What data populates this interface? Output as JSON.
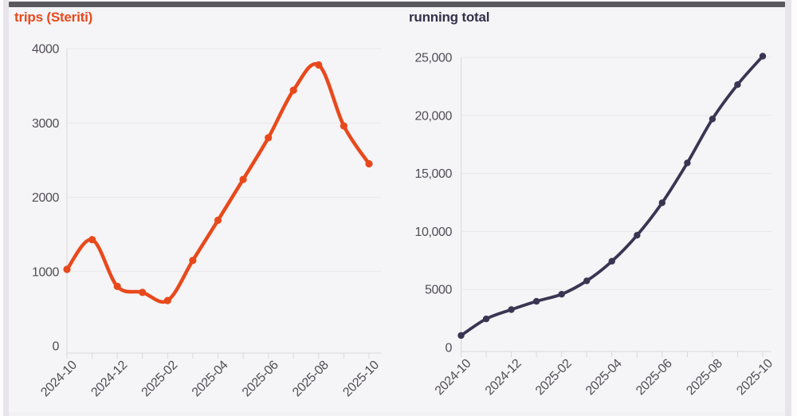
{
  "page": {
    "scrollbar_color": "#59585c",
    "background": "#f5f4f6"
  },
  "chart_data": [
    {
      "type": "line",
      "title": "trips (Steriti)",
      "title_color": "#e8491c",
      "line_color": "#e8491c",
      "smooth": true,
      "markers": true,
      "grid": true,
      "legend": "none",
      "x": [
        "2024-10",
        "2024-11",
        "2024-12",
        "2025-01",
        "2025-02",
        "2025-03",
        "2025-04",
        "2025-05",
        "2025-06",
        "2025-07",
        "2025-08",
        "2025-09",
        "2025-10"
      ],
      "values": [
        1030,
        1430,
        800,
        720,
        610,
        1150,
        1690,
        2240,
        2800,
        3440,
        3780,
        2960,
        2450
      ],
      "xlabel": "",
      "ylabel": "",
      "ylim": [
        0,
        4000
      ],
      "y_ticks": [
        0,
        1000,
        2000,
        3000,
        4000
      ],
      "y_tick_labels": [
        "0",
        "1000",
        "2000",
        "3000",
        "4000"
      ],
      "x_tick_indices": [
        0,
        2,
        4,
        6,
        8,
        10,
        12
      ],
      "x_tick_labels": [
        "2024-10",
        "2024-12",
        "2025-02",
        "2025-04",
        "2025-06",
        "2025-08",
        "2025-10"
      ]
    },
    {
      "type": "line",
      "title": "running total",
      "title_color": "#35314b",
      "line_color": "#393552",
      "smooth": true,
      "markers": true,
      "grid": true,
      "legend": "none",
      "x": [
        "2024-10",
        "2024-11",
        "2024-12",
        "2025-01",
        "2025-02",
        "2025-03",
        "2025-04",
        "2025-05",
        "2025-06",
        "2025-07",
        "2025-08",
        "2025-09",
        "2025-10"
      ],
      "values": [
        1030,
        2460,
        3260,
        3980,
        4590,
        5740,
        7430,
        9670,
        12470,
        15910,
        19690,
        22650,
        25100
      ],
      "xlabel": "",
      "ylabel": "",
      "ylim": [
        0,
        25000
      ],
      "y_ticks": [
        0,
        5000,
        10000,
        15000,
        20000,
        25000
      ],
      "y_tick_labels": [
        "0",
        "5000",
        "10,000",
        "15,000",
        "20,000",
        "25,000"
      ],
      "x_tick_indices": [
        0,
        2,
        4,
        6,
        8,
        10,
        12
      ],
      "x_tick_labels": [
        "2024-10",
        "2024-12",
        "2025-02",
        "2025-04",
        "2025-06",
        "2025-08",
        "2025-10"
      ]
    }
  ]
}
